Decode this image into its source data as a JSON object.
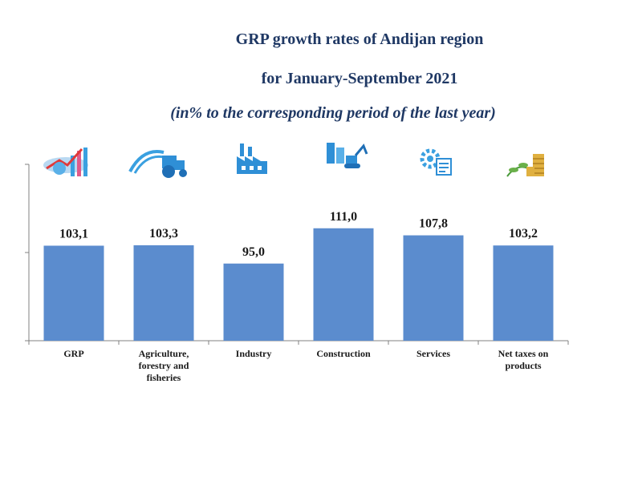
{
  "title": {
    "line1": "GRP growth rates of Andijan region",
    "line2": "for January-September 2021",
    "line3": "(in% to the corresponding period of the last year)"
  },
  "colors": {
    "bar": "#5b8cce",
    "title": "#1f3864",
    "axis": "#808080",
    "icon": "#3aa0e0"
  },
  "icons": [
    "growth-chart-icon",
    "tractor-icon",
    "factory-icon",
    "crane-icon",
    "gear-checklist-icon",
    "coins-plant-icon"
  ],
  "chart_data": {
    "type": "bar",
    "title": "GRP growth rates of Andijan region for January-September 2021 (in% to the corresponding period of the last year)",
    "categories": [
      [
        "GRP"
      ],
      [
        "Agriculture,",
        "forestry and",
        "fisheries"
      ],
      [
        "Industry"
      ],
      [
        "Construction"
      ],
      [
        "Services"
      ],
      [
        "Net taxes on",
        "products"
      ]
    ],
    "values": [
      103.1,
      103.3,
      95.0,
      111.0,
      107.8,
      103.2
    ],
    "value_labels": [
      "103,1",
      "103,3",
      "95,0",
      "111,0",
      "107,8",
      "103,2"
    ],
    "xlabel": "",
    "ylabel": "",
    "ylim": [
      60,
      140
    ],
    "grid": false
  }
}
